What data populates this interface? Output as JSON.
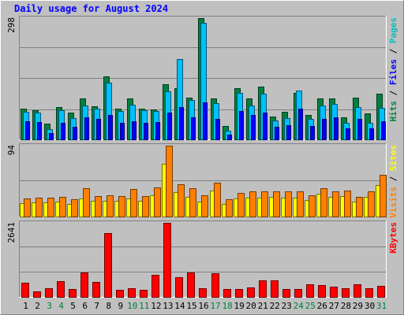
{
  "chart_data": [
    {
      "type": "bar",
      "title": "Daily usage for August 2024",
      "ymax_label": "298",
      "ylim": [
        0,
        298
      ],
      "categories": [
        "1",
        "2",
        "3",
        "4",
        "5",
        "6",
        "7",
        "8",
        "9",
        "10",
        "11",
        "12",
        "13",
        "14",
        "15",
        "16",
        "17",
        "18",
        "19",
        "20",
        "21",
        "22",
        "23",
        "24",
        "25",
        "26",
        "27",
        "28",
        "29",
        "30",
        "31"
      ],
      "weekend_days": [
        "3",
        "4",
        "10",
        "11",
        "17",
        "18",
        "24",
        "25",
        "31"
      ],
      "legend": [
        "Pages",
        "Files",
        "Hits"
      ],
      "series": [
        {
          "name": "Hits",
          "color": "#008040",
          "values": [
            75,
            72,
            38,
            80,
            66,
            100,
            81,
            155,
            75,
            100,
            75,
            74,
            136,
            126,
            102,
            298,
            100,
            33,
            126,
            100,
            130,
            57,
            68,
            115,
            60,
            100,
            100,
            54,
            103,
            63,
            113
          ]
        },
        {
          "name": "Files",
          "color": "#00c0ff",
          "values": [
            67,
            66,
            26,
            72,
            53,
            84,
            75,
            139,
            70,
            86,
            71,
            70,
            118,
            198,
            97,
            286,
            89,
            22,
            114,
            84,
            112,
            47,
            53,
            120,
            51,
            83,
            87,
            40,
            80,
            40,
            77
          ]
        },
        {
          "name": "Pages",
          "color": "#0000ff",
          "values": [
            45,
            42,
            15,
            40,
            30,
            55,
            50,
            60,
            40,
            45,
            40,
            42,
            65,
            80,
            55,
            90,
            50,
            12,
            70,
            60,
            65,
            30,
            35,
            75,
            32,
            50,
            55,
            28,
            50,
            28,
            45
          ]
        }
      ]
    },
    {
      "type": "bar",
      "ymax_label": "94",
      "ylim": [
        0,
        94
      ],
      "categories": [
        "1",
        "2",
        "3",
        "4",
        "5",
        "6",
        "7",
        "8",
        "9",
        "10",
        "11",
        "12",
        "13",
        "14",
        "15",
        "16",
        "17",
        "18",
        "19",
        "20",
        "21",
        "22",
        "23",
        "24",
        "25",
        "26",
        "27",
        "28",
        "29",
        "30",
        "31"
      ],
      "legend": [
        "Sites",
        "Visits"
      ],
      "series": [
        {
          "name": "Visits",
          "color": "#ff8000",
          "values": [
            24,
            25,
            25,
            26,
            23,
            38,
            27,
            28,
            27,
            37,
            27,
            39,
            94,
            43,
            38,
            28,
            45,
            23,
            31,
            33,
            33,
            33,
            33,
            33,
            28,
            38,
            33,
            34,
            26,
            33,
            55
          ]
        },
        {
          "name": "Sites",
          "color": "#ffff00",
          "values": [
            18,
            19,
            19,
            20,
            17,
            24,
            21,
            21,
            21,
            24,
            21,
            28,
            70,
            32,
            26,
            20,
            34,
            17,
            24,
            25,
            25,
            26,
            25,
            25,
            22,
            30,
            26,
            27,
            20,
            26,
            42
          ]
        }
      ]
    },
    {
      "type": "bar",
      "ymax_label": "2641",
      "ylim": [
        0,
        2641
      ],
      "categories": [
        "1",
        "2",
        "3",
        "4",
        "5",
        "6",
        "7",
        "8",
        "9",
        "10",
        "11",
        "12",
        "13",
        "14",
        "15",
        "16",
        "17",
        "18",
        "19",
        "20",
        "21",
        "22",
        "23",
        "24",
        "25",
        "26",
        "27",
        "28",
        "29",
        "30",
        "31"
      ],
      "legend": [
        "KBytes"
      ],
      "series": [
        {
          "name": "KBytes",
          "color": "#ff0000",
          "values": [
            500,
            200,
            300,
            560,
            280,
            880,
            520,
            2270,
            250,
            300,
            260,
            780,
            2641,
            700,
            880,
            320,
            850,
            280,
            280,
            340,
            580,
            580,
            280,
            280,
            460,
            430,
            360,
            300,
            440,
            300,
            380
          ]
        }
      ]
    }
  ]
}
